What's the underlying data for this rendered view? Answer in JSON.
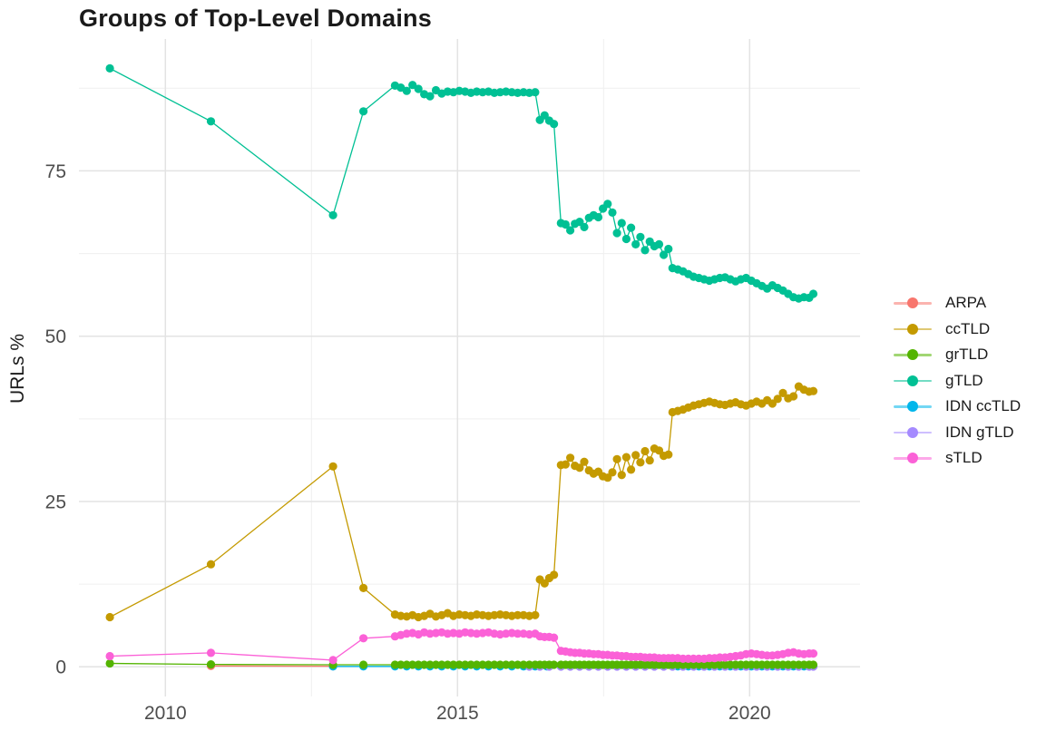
{
  "chart_data": {
    "type": "line",
    "title": "Groups of Top-Level Domains",
    "xlabel": "",
    "ylabel": "URLs %",
    "x_ticks": [
      2010,
      2015,
      2020
    ],
    "x_minor_gridlines": [
      2012.5,
      2017.5
    ],
    "y_ticks": [
      0,
      25,
      50,
      75
    ],
    "y_minor_gridlines": [
      12.5,
      37.5,
      62.5,
      87.5
    ],
    "xlim": [
      2008.52,
      2021.89
    ],
    "ylim": [
      -4.5,
      94.95
    ],
    "grid": true,
    "legend_position": "right",
    "marker": "point",
    "draw_order": [
      "arpa",
      "idn_cctld",
      "idn_gtld",
      "grtld",
      "cctld",
      "gtld",
      "stld"
    ],
    "series": [
      {
        "key": "arpa",
        "label": "ARPA",
        "color": "#F8766D",
        "x": [
          2010.78,
          2012.87
        ],
        "y": [
          0.12,
          0.08
        ]
      },
      {
        "key": "cctld",
        "label": "ccTLD",
        "color": "#C49A00",
        "x": [
          2009.05,
          2010.78,
          2012.87,
          2013.39,
          2013.93,
          2014.03,
          2014.13,
          2014.23,
          2014.33,
          2014.43,
          2014.53,
          2014.63,
          2014.73,
          2014.83,
          2014.93,
          2015.03,
          2015.13,
          2015.23,
          2015.33,
          2015.43,
          2015.53,
          2015.63,
          2015.73,
          2015.83,
          2015.93,
          2016.03,
          2016.13,
          2016.23,
          2016.33,
          2016.41,
          2016.49,
          2016.57,
          2016.65,
          2016.77,
          2016.85,
          2016.93,
          2017.01,
          2017.09,
          2017.17,
          2017.25,
          2017.33,
          2017.41,
          2017.49,
          2017.57,
          2017.65,
          2017.73,
          2017.81,
          2017.89,
          2017.97,
          2018.05,
          2018.13,
          2018.21,
          2018.29,
          2018.37,
          2018.45,
          2018.53,
          2018.61,
          2018.68,
          2018.77,
          2018.86,
          2018.95,
          2019.04,
          2019.13,
          2019.22,
          2019.31,
          2019.4,
          2019.49,
          2019.58,
          2019.67,
          2019.76,
          2019.85,
          2019.94,
          2020.03,
          2020.12,
          2020.21,
          2020.3,
          2020.39,
          2020.48,
          2020.57,
          2020.66,
          2020.75,
          2020.84,
          2020.93,
          2021.02,
          2021.09
        ],
        "y": [
          7.5,
          15.5,
          30.3,
          11.9,
          7.9,
          7.7,
          7.6,
          7.8,
          7.5,
          7.7,
          8.0,
          7.6,
          7.8,
          8.1,
          7.7,
          7.9,
          7.8,
          7.7,
          7.9,
          7.8,
          7.7,
          7.8,
          7.9,
          7.8,
          7.7,
          7.8,
          7.8,
          7.7,
          7.8,
          13.2,
          12.6,
          13.4,
          13.9,
          30.5,
          30.6,
          31.6,
          30.4,
          30.1,
          31.0,
          29.7,
          29.2,
          29.5,
          28.8,
          28.6,
          29.4,
          31.4,
          29.0,
          31.7,
          29.8,
          32.0,
          30.9,
          32.6,
          31.2,
          33.0,
          32.7,
          31.9,
          32.1,
          38.5,
          38.7,
          38.9,
          39.2,
          39.5,
          39.7,
          39.9,
          40.1,
          39.9,
          39.7,
          39.6,
          39.8,
          40.0,
          39.7,
          39.5,
          39.8,
          40.1,
          39.8,
          40.3,
          39.8,
          40.5,
          41.4,
          40.6,
          40.9,
          42.4,
          41.9,
          41.6,
          41.7
        ]
      },
      {
        "key": "grtld",
        "label": "grTLD",
        "color": "#53B400",
        "x": [
          2009.05,
          2010.78,
          2012.87,
          2013.39,
          2013.93,
          2014.03,
          2014.13,
          2014.23,
          2014.33,
          2014.43,
          2014.53,
          2014.63,
          2014.73,
          2014.83,
          2014.93,
          2015.03,
          2015.13,
          2015.23,
          2015.33,
          2015.43,
          2015.53,
          2015.63,
          2015.73,
          2015.83,
          2015.93,
          2016.03,
          2016.13,
          2016.23,
          2016.33,
          2016.41,
          2016.49,
          2016.57,
          2016.65,
          2016.77,
          2016.85,
          2016.93,
          2017.01,
          2017.09,
          2017.17,
          2017.25,
          2017.33,
          2017.41,
          2017.49,
          2017.57,
          2017.65,
          2017.73,
          2017.81,
          2017.89,
          2017.97,
          2018.05,
          2018.13,
          2018.21,
          2018.29,
          2018.37,
          2018.45,
          2018.53,
          2018.61,
          2018.68,
          2018.77,
          2018.86,
          2018.95,
          2019.04,
          2019.13,
          2019.22,
          2019.31,
          2019.4,
          2019.49,
          2019.58,
          2019.67,
          2019.76,
          2019.85,
          2019.94,
          2020.03,
          2020.12,
          2020.21,
          2020.3,
          2020.39,
          2020.48,
          2020.57,
          2020.66,
          2020.75,
          2020.84,
          2020.93,
          2021.02,
          2021.09
        ],
        "y": [
          0.5,
          0.35,
          0.3,
          0.3,
          0.3,
          0.3,
          0.3,
          0.3,
          0.3,
          0.3,
          0.3,
          0.3,
          0.3,
          0.3,
          0.3,
          0.3,
          0.3,
          0.3,
          0.3,
          0.3,
          0.3,
          0.3,
          0.3,
          0.3,
          0.3,
          0.3,
          0.3,
          0.3,
          0.3,
          0.3,
          0.3,
          0.3,
          0.3,
          0.3,
          0.3,
          0.3,
          0.3,
          0.3,
          0.3,
          0.3,
          0.3,
          0.3,
          0.3,
          0.3,
          0.3,
          0.3,
          0.3,
          0.3,
          0.3,
          0.3,
          0.3,
          0.3,
          0.3,
          0.3,
          0.3,
          0.3,
          0.3,
          0.3,
          0.3,
          0.3,
          0.3,
          0.3,
          0.3,
          0.3,
          0.3,
          0.3,
          0.3,
          0.3,
          0.3,
          0.3,
          0.3,
          0.3,
          0.3,
          0.3,
          0.3,
          0.3,
          0.3,
          0.3,
          0.3,
          0.3,
          0.3,
          0.3,
          0.3,
          0.3,
          0.3
        ]
      },
      {
        "key": "gtld",
        "label": "gTLD",
        "color": "#00C094",
        "x": [
          2009.05,
          2010.78,
          2012.87,
          2013.39,
          2013.93,
          2014.03,
          2014.13,
          2014.23,
          2014.33,
          2014.43,
          2014.53,
          2014.63,
          2014.73,
          2014.83,
          2014.93,
          2015.03,
          2015.13,
          2015.23,
          2015.33,
          2015.43,
          2015.53,
          2015.63,
          2015.73,
          2015.83,
          2015.93,
          2016.03,
          2016.13,
          2016.23,
          2016.33,
          2016.41,
          2016.49,
          2016.57,
          2016.65,
          2016.77,
          2016.85,
          2016.93,
          2017.01,
          2017.09,
          2017.17,
          2017.25,
          2017.33,
          2017.41,
          2017.49,
          2017.57,
          2017.65,
          2017.73,
          2017.81,
          2017.89,
          2017.97,
          2018.05,
          2018.13,
          2018.21,
          2018.29,
          2018.37,
          2018.45,
          2018.53,
          2018.61,
          2018.68,
          2018.77,
          2018.86,
          2018.95,
          2019.04,
          2019.13,
          2019.22,
          2019.31,
          2019.4,
          2019.49,
          2019.58,
          2019.67,
          2019.76,
          2019.85,
          2019.94,
          2020.03,
          2020.12,
          2020.21,
          2020.3,
          2020.39,
          2020.48,
          2020.57,
          2020.66,
          2020.75,
          2020.84,
          2020.93,
          2021.02,
          2021.09
        ],
        "y": [
          90.5,
          82.5,
          68.3,
          84.0,
          87.9,
          87.6,
          87.1,
          88.0,
          87.4,
          86.6,
          86.3,
          87.2,
          86.7,
          87.0,
          86.9,
          87.1,
          87.0,
          86.8,
          87.0,
          86.9,
          87.0,
          86.8,
          86.9,
          87.0,
          86.9,
          86.8,
          86.9,
          86.8,
          86.9,
          82.7,
          83.4,
          82.6,
          82.1,
          67.1,
          66.9,
          66.0,
          67.0,
          67.3,
          66.5,
          67.9,
          68.3,
          68.0,
          69.3,
          70.0,
          68.7,
          65.6,
          67.1,
          64.7,
          66.4,
          63.9,
          65.0,
          63.0,
          64.3,
          63.6,
          63.9,
          62.3,
          63.2,
          60.3,
          60.1,
          59.8,
          59.4,
          59.0,
          58.8,
          58.6,
          58.4,
          58.6,
          58.8,
          58.9,
          58.6,
          58.3,
          58.6,
          58.8,
          58.4,
          58.0,
          57.6,
          57.2,
          57.7,
          57.3,
          56.9,
          56.4,
          55.9,
          55.7,
          55.9,
          55.8,
          56.4
        ]
      },
      {
        "key": "idn_cctld",
        "label": "IDN ccTLD",
        "color": "#00B6EB",
        "x": [
          2012.87,
          2013.39,
          2013.93,
          2014.13,
          2014.33,
          2014.53,
          2014.73,
          2014.93,
          2015.13,
          2015.33,
          2015.53,
          2015.73,
          2015.93,
          2016.13,
          2016.33,
          2016.53,
          2016.77,
          2016.93,
          2017.09,
          2017.25,
          2017.41,
          2017.57,
          2017.73,
          2017.89,
          2018.05,
          2018.21,
          2018.37,
          2018.53,
          2018.77,
          2018.95,
          2019.13,
          2019.31,
          2019.49,
          2019.67,
          2019.85,
          2020.03,
          2020.21,
          2020.39,
          2020.57,
          2020.75,
          2020.93,
          2021.09
        ],
        "y": [
          0.05,
          0.05,
          0.05,
          0.05,
          0.05,
          0.05,
          0.05,
          0.05,
          0.05,
          0.05,
          0.05,
          0.05,
          0.05,
          0.05,
          0.05,
          0.05,
          0.05,
          0.05,
          0.05,
          0.05,
          0.05,
          0.05,
          0.05,
          0.05,
          0.05,
          0.05,
          0.05,
          0.05,
          0.05,
          0.05,
          0.05,
          0.05,
          0.05,
          0.05,
          0.05,
          0.05,
          0.05,
          0.05,
          0.05,
          0.05,
          0.05,
          0.05
        ]
      },
      {
        "key": "idn_gtld",
        "label": "IDN gTLD",
        "color": "#A58AFF",
        "x": [
          2016.23,
          2016.41,
          2016.57,
          2016.77,
          2016.93,
          2017.09,
          2017.25,
          2017.41,
          2017.57,
          2017.73,
          2017.89,
          2018.05,
          2018.21,
          2018.37,
          2018.53,
          2018.68,
          2018.86,
          2019.04,
          2019.22,
          2019.4,
          2019.58,
          2019.76,
          2019.94,
          2020.12,
          2020.3,
          2020.48,
          2020.66,
          2020.84,
          2021.02,
          2021.09
        ],
        "y": [
          0.02,
          0.02,
          0.02,
          0.02,
          0.02,
          0.02,
          0.02,
          0.02,
          0.02,
          0.02,
          0.02,
          0.02,
          0.02,
          0.02,
          0.02,
          0.02,
          0.02,
          0.02,
          0.02,
          0.02,
          0.02,
          0.02,
          0.02,
          0.02,
          0.02,
          0.02,
          0.02,
          0.02,
          0.02,
          0.02
        ]
      },
      {
        "key": "stld",
        "label": "sTLD",
        "color": "#FB61D7",
        "x": [
          2009.05,
          2010.78,
          2012.87,
          2013.39,
          2013.93,
          2014.03,
          2014.13,
          2014.23,
          2014.33,
          2014.43,
          2014.53,
          2014.63,
          2014.73,
          2014.83,
          2014.93,
          2015.03,
          2015.13,
          2015.23,
          2015.33,
          2015.43,
          2015.53,
          2015.63,
          2015.73,
          2015.83,
          2015.93,
          2016.03,
          2016.13,
          2016.23,
          2016.33,
          2016.41,
          2016.49,
          2016.57,
          2016.65,
          2016.77,
          2016.85,
          2016.93,
          2017.01,
          2017.09,
          2017.17,
          2017.25,
          2017.33,
          2017.41,
          2017.49,
          2017.57,
          2017.65,
          2017.73,
          2017.81,
          2017.89,
          2017.97,
          2018.05,
          2018.13,
          2018.21,
          2018.29,
          2018.37,
          2018.45,
          2018.53,
          2018.61,
          2018.68,
          2018.77,
          2018.86,
          2018.95,
          2019.04,
          2019.13,
          2019.22,
          2019.31,
          2019.4,
          2019.49,
          2019.58,
          2019.67,
          2019.76,
          2019.85,
          2019.94,
          2020.03,
          2020.12,
          2020.21,
          2020.3,
          2020.39,
          2020.48,
          2020.57,
          2020.66,
          2020.75,
          2020.84,
          2020.93,
          2021.02,
          2021.09
        ],
        "y": [
          1.6,
          2.1,
          1.0,
          4.3,
          4.6,
          4.8,
          5.0,
          5.1,
          4.9,
          5.2,
          5.0,
          5.1,
          5.2,
          5.0,
          5.1,
          5.0,
          5.2,
          5.1,
          5.0,
          5.1,
          5.2,
          5.0,
          4.9,
          5.0,
          5.1,
          5.0,
          5.0,
          4.9,
          5.0,
          4.6,
          4.5,
          4.5,
          4.4,
          2.4,
          2.3,
          2.2,
          2.1,
          2.1,
          2.0,
          2.0,
          1.9,
          1.9,
          1.8,
          1.8,
          1.7,
          1.7,
          1.6,
          1.6,
          1.5,
          1.5,
          1.5,
          1.4,
          1.4,
          1.4,
          1.3,
          1.3,
          1.3,
          1.3,
          1.3,
          1.2,
          1.2,
          1.2,
          1.2,
          1.2,
          1.3,
          1.3,
          1.4,
          1.4,
          1.5,
          1.6,
          1.7,
          1.9,
          2.0,
          1.9,
          1.8,
          1.7,
          1.7,
          1.8,
          1.9,
          2.1,
          2.2,
          2.0,
          1.9,
          2.0,
          2.0
        ]
      }
    ]
  },
  "style_colors": {
    "major_gridline": "#E3E3E3",
    "minor_gridline": "#EFEFEF",
    "tick_label": "#4D4D4D",
    "text": "#1A1A1A",
    "background": "#FFFFFF"
  }
}
